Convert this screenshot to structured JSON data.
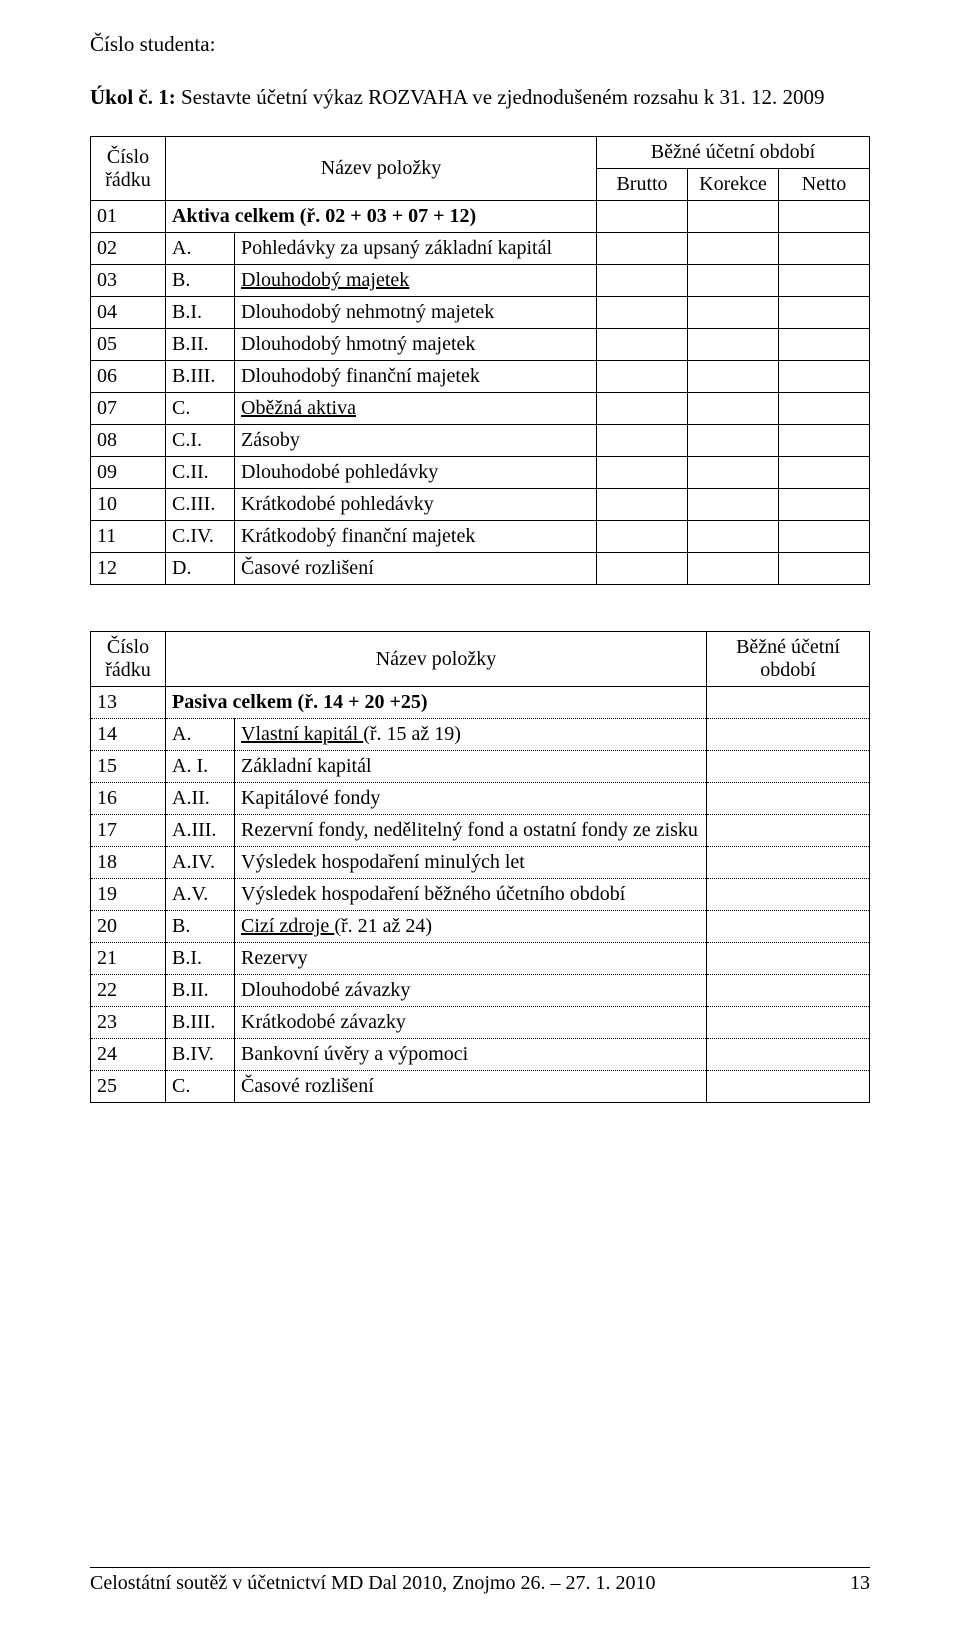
{
  "header": {
    "student_number_label": "Číslo studenta:",
    "task_label": "Úkol č. 1:",
    "task_text": "Sestavte účetní výkaz ROZVAHA ve zjednodušeném rozsahu k 31. 12. 2009"
  },
  "balance_table": {
    "row_header": "Číslo řádku",
    "name_header": "Název položky",
    "period_header": "Běžné účetní období",
    "brutto": "Brutto",
    "korekce": "Korekce",
    "netto": "Netto",
    "rows": [
      {
        "num": "01",
        "code": "",
        "name_bold": "Aktiva celkem (ř. 02 + 03 + 07 + 12)",
        "underline": false,
        "bold": true
      },
      {
        "num": "02",
        "code": "A.",
        "name": "Pohledávky za upsaný základní kapitál"
      },
      {
        "num": "03",
        "code": "B.",
        "name": "Dlouhodobý majetek",
        "underline": true
      },
      {
        "num": "04",
        "code": "B.I.",
        "name": "Dlouhodobý nehmotný majetek"
      },
      {
        "num": "05",
        "code": "B.II.",
        "name": "Dlouhodobý hmotný majetek"
      },
      {
        "num": "06",
        "code": "B.III.",
        "name": "Dlouhodobý finanční majetek"
      },
      {
        "num": "07",
        "code": "C.",
        "name": "Oběžná aktiva",
        "underline": true
      },
      {
        "num": "08",
        "code": "C.I.",
        "name": "Zásoby"
      },
      {
        "num": "09",
        "code": "C.II.",
        "name": "Dlouhodobé pohledávky"
      },
      {
        "num": "10",
        "code": "C.III.",
        "name": "Krátkodobé pohledávky"
      },
      {
        "num": "11",
        "code": "C.IV.",
        "name": "Krátkodobý finanční majetek"
      },
      {
        "num": "12",
        "code": "D.",
        "name": "Časové rozlišení"
      }
    ]
  },
  "pasiva_table": {
    "row_header": "Číslo řádku",
    "name_header": "Název položky",
    "period_header": "Běžné účetní období",
    "rows": [
      {
        "num": "13",
        "code": "",
        "name_bold": "Pasiva celkem (ř. 14 + 20 +25)",
        "bold": true
      },
      {
        "num": "14",
        "code": "A.",
        "name": "Vlastní kapitál ",
        "suffix": "(ř. 15 až 19)",
        "underline": true
      },
      {
        "num": "15",
        "code": "A. I.",
        "name": "Základní kapitál"
      },
      {
        "num": "16",
        "code": "A.II.",
        "name": "Kapitálové fondy"
      },
      {
        "num": "17",
        "code": "A.III.",
        "name": "Rezervní fondy, nedělitelný fond a ostatní fondy ze zisku"
      },
      {
        "num": "18",
        "code": "A.IV.",
        "name": "Výsledek hospodaření minulých let"
      },
      {
        "num": "19",
        "code": "A.V.",
        "name": "Výsledek hospodaření běžného účetního období"
      },
      {
        "num": "20",
        "code": "B.",
        "name": "Cizí zdroje ",
        "suffix": "(ř. 21 až 24)",
        "underline": true
      },
      {
        "num": "21",
        "code": "B.I.",
        "name": "Rezervy"
      },
      {
        "num": "22",
        "code": "B.II.",
        "name": "Dlouhodobé závazky"
      },
      {
        "num": "23",
        "code": "B.III.",
        "name": "Krátkodobé závazky"
      },
      {
        "num": "24",
        "code": "B.IV.",
        "name": "Bankovní úvěry a výpomoci"
      },
      {
        "num": "25",
        "code": "C.",
        "name": "Časové rozlišení"
      }
    ]
  },
  "footer": {
    "text": "Celostátní soutěž v účetnictví MD Dal 2010, Znojmo 26. – 27. 1. 2010",
    "page": "13"
  }
}
